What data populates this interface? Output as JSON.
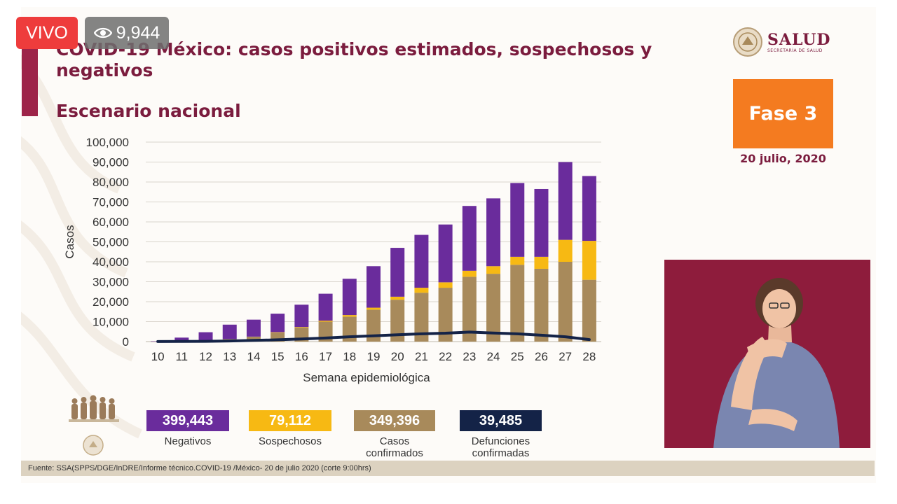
{
  "stream": {
    "live_label": "VIVO",
    "viewer_count": "9,944"
  },
  "header": {
    "title": "COVID-19 México: casos positivos estimados, sospechosos y negativos",
    "subtitle": "Escenario nacional",
    "logo_text": "SALUD",
    "logo_subtext": "SECRETARÍA DE SALUD",
    "phase": "Fase 3",
    "date": "20 julio, 2020"
  },
  "colors": {
    "negativos": "#6a2c9c",
    "sospechosos": "#f7b913",
    "confirmados": "#a88a5b",
    "defunciones": "#142347",
    "title": "#7b1c3e",
    "phase": "#f47b20"
  },
  "chart_data": {
    "type": "bar",
    "stacked": true,
    "xlabel": "Semana epidemiológica",
    "ylabel": "Casos",
    "ylim": [
      0,
      100000
    ],
    "yticks": [
      0,
      10000,
      20000,
      30000,
      40000,
      50000,
      60000,
      70000,
      80000,
      90000,
      100000
    ],
    "ytick_labels": [
      "0",
      "10,000",
      "20,000",
      "30,000",
      "40,000",
      "50,000",
      "60,000",
      "70,000",
      "80,000",
      "90,000",
      "100,000"
    ],
    "grid": true,
    "categories": [
      "10",
      "11",
      "12",
      "13",
      "14",
      "15",
      "16",
      "17",
      "18",
      "19",
      "20",
      "21",
      "22",
      "23",
      "24",
      "25",
      "26",
      "27",
      "28"
    ],
    "series": [
      {
        "name": "Casos confirmados",
        "type": "bar",
        "values": [
          50,
          200,
          500,
          1300,
          2500,
          4500,
          7000,
          10000,
          12500,
          16000,
          21000,
          24500,
          27000,
          32500,
          34000,
          38500,
          36500,
          40000,
          31000
        ]
      },
      {
        "name": "Sospechosos",
        "type": "bar",
        "values": [
          0,
          0,
          0,
          0,
          0,
          200,
          300,
          500,
          800,
          1000,
          1500,
          2500,
          2700,
          3000,
          3800,
          4000,
          6000,
          11000,
          19500
        ]
      },
      {
        "name": "Negativos",
        "type": "bar",
        "values": [
          100,
          1800,
          4200,
          7200,
          8500,
          9300,
          11200,
          13500,
          18200,
          20800,
          24500,
          26500,
          29000,
          32500,
          34000,
          37000,
          34000,
          39000,
          32500
        ]
      },
      {
        "name": "Defunciones confirmadas",
        "type": "line",
        "values": [
          50,
          80,
          150,
          300,
          600,
          900,
          1300,
          1800,
          2400,
          2900,
          3400,
          3900,
          4200,
          4800,
          4300,
          3900,
          3200,
          2400,
          1000
        ]
      }
    ]
  },
  "legend": [
    {
      "value": "399,443",
      "label": "Negativos",
      "color": "#6a2c9c",
      "text_color": "#ffffff"
    },
    {
      "value": "79,112",
      "label": "Sospechosos",
      "color": "#f7b913",
      "text_color": "#ffffff"
    },
    {
      "value": "349,396",
      "label": "Casos\nconfirmados",
      "color": "#a88a5b",
      "text_color": "#ffffff"
    },
    {
      "value": "39,485",
      "label": "Defunciones\nconfirmadas",
      "color": "#142347",
      "text_color": "#ffffff"
    }
  ],
  "footer": {
    "source": "Fuente: SSA(SPPS/DGE/InDRE/Informe técnico.COVID-19 /México- 20 de julio 2020 (corte 9:00hrs)"
  }
}
